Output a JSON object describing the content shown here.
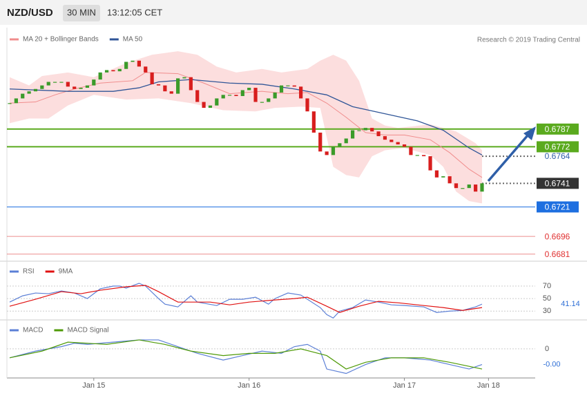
{
  "chart_data": [
    {
      "type": "candlestick",
      "title": "NZD/USD",
      "interval": "30 MIN",
      "time": "13:12:05 CET",
      "source": "Research © 2019 Trading Central",
      "up_color": "#3b9b2a",
      "down_color": "#d81e1e",
      "close": [
        0.6809,
        0.6813,
        0.6817,
        0.6819,
        0.6821,
        0.6824,
        0.6827,
        0.6827,
        0.6827,
        0.6823,
        0.6821,
        0.6822,
        0.6824,
        0.6829,
        0.6835,
        0.6837,
        0.6836,
        0.6838,
        0.6844,
        0.6845,
        0.684,
        0.6835,
        0.6825,
        0.6824,
        0.6819,
        0.6817,
        0.683,
        0.6831,
        0.682,
        0.681,
        0.6805,
        0.6807,
        0.6813,
        0.6816,
        0.6816,
        0.6815,
        0.682,
        0.6822,
        0.681,
        0.681,
        0.6813,
        0.6818,
        0.6824,
        0.6824,
        0.6823,
        0.6813,
        0.6802,
        0.6784,
        0.6768,
        0.6765,
        0.6772,
        0.6775,
        0.6779,
        0.6786,
        0.6786,
        0.6788,
        0.6785,
        0.6781,
        0.6778,
        0.6776,
        0.6774,
        0.6772,
        0.6765,
        0.6765,
        0.6764,
        0.6752,
        0.6746,
        0.6747,
        0.6741,
        0.6737,
        0.6737,
        0.674,
        0.6734,
        0.6741
      ],
      "series": [
        {
          "name": "MA 20 + Bollinger Bands",
          "color": "#f08c8c",
          "x": [
            0,
            4,
            7,
            10,
            14,
            19,
            21,
            26,
            30,
            34,
            39,
            43,
            46,
            49,
            52,
            55,
            58,
            61,
            65,
            68,
            71,
            73
          ],
          "values": [
            0.6809,
            0.681,
            0.6816,
            0.6821,
            0.6826,
            0.6828,
            0.6835,
            0.6834,
            0.6826,
            0.6817,
            0.6819,
            0.6817,
            0.6818,
            0.6809,
            0.6797,
            0.6784,
            0.6782,
            0.6782,
            0.6778,
            0.6767,
            0.6753,
            0.6746
          ]
        },
        {
          "name": "MA 50",
          "color": "#2f5597",
          "x": [
            0,
            9,
            16,
            20,
            23,
            28,
            34,
            39,
            44,
            49,
            53,
            58,
            63,
            67,
            71,
            73
          ],
          "values": [
            0.6821,
            0.6819,
            0.6819,
            0.6822,
            0.6827,
            0.6829,
            0.6826,
            0.6825,
            0.6821,
            0.6816,
            0.6806,
            0.68,
            0.6794,
            0.6786,
            0.6771,
            0.6765
          ]
        }
      ],
      "bands": {
        "color": "#fbd3d3",
        "upper": {
          "x": [
            0,
            3,
            5,
            9,
            13,
            18,
            22,
            26,
            29,
            32,
            35,
            39,
            42,
            46,
            48,
            50,
            52,
            54,
            56,
            58,
            60,
            65,
            69,
            72,
            73
          ],
          "values": [
            0.6831,
            0.6824,
            0.6832,
            0.6835,
            0.6831,
            0.6843,
            0.685,
            0.6853,
            0.685,
            0.684,
            0.6835,
            0.6838,
            0.6835,
            0.6838,
            0.6845,
            0.685,
            0.6845,
            0.6828,
            0.6796,
            0.679,
            0.6788,
            0.6791,
            0.6785,
            0.6775,
            0.6769
          ]
        },
        "lower": {
          "x": [
            0,
            3,
            6,
            9,
            13,
            18,
            23,
            28,
            33,
            38,
            41,
            45,
            48,
            50,
            52,
            54,
            56,
            58,
            61,
            65,
            67,
            69,
            71,
            73
          ],
          "values": [
            0.6792,
            0.6796,
            0.6796,
            0.6807,
            0.6816,
            0.6812,
            0.6813,
            0.6809,
            0.6803,
            0.6802,
            0.6805,
            0.6806,
            0.6805,
            0.6755,
            0.6748,
            0.6746,
            0.6764,
            0.6769,
            0.6771,
            0.6765,
            0.6755,
            0.6734,
            0.6726,
            0.6724
          ]
        }
      },
      "levels": [
        {
          "value": 0.6787,
          "color": "#5aaa1e",
          "style": "box"
        },
        {
          "value": 0.6772,
          "color": "#5aaa1e",
          "style": "box"
        },
        {
          "value": 0.6764,
          "color": "#2f5fa8",
          "style": "dotted-text"
        },
        {
          "value": 0.6741,
          "color": "#333333",
          "style": "dotted-box"
        },
        {
          "value": 0.6721,
          "color": "#1e6fe0",
          "style": "box"
        },
        {
          "value": 0.6696,
          "color": "#e03030",
          "style": "text"
        },
        {
          "value": 0.6681,
          "color": "#e03030",
          "style": "text"
        }
      ],
      "ylim": [
        0.6675,
        0.6873
      ]
    },
    {
      "type": "line",
      "series": [
        {
          "name": "RSI",
          "color": "#5b7fd6",
          "x": [
            0,
            2,
            4,
            6,
            8,
            10,
            12,
            14,
            16,
            17,
            18,
            20,
            21,
            23,
            24,
            26,
            28,
            29,
            32,
            34,
            36,
            38,
            40,
            41,
            43,
            45,
            48,
            49,
            50,
            51,
            53,
            55,
            57,
            59,
            61,
            64,
            66,
            68,
            70,
            72,
            73
          ],
          "values": [
            44.4,
            54.4,
            58.9,
            57.8,
            62.2,
            58.9,
            50,
            65.6,
            70,
            70,
            66.7,
            74.4,
            70,
            50,
            41.1,
            36.7,
            54.4,
            44.4,
            38.9,
            48.9,
            48.9,
            52.2,
            41.1,
            50,
            58.9,
            55.6,
            35.6,
            24.4,
            18.9,
            30,
            35.6,
            47.8,
            44.4,
            40,
            38.9,
            36.7,
            27.8,
            30,
            31.1,
            36.7,
            41.14
          ]
        },
        {
          "name": "9MA",
          "color": "#e01010",
          "x": [
            0,
            4,
            8,
            11,
            14,
            18,
            21,
            23,
            26,
            31,
            34,
            37,
            41,
            44,
            46,
            49,
            51,
            54,
            57,
            60,
            64,
            67,
            70,
            73
          ],
          "values": [
            37.8,
            48.9,
            61.1,
            57.8,
            63.3,
            68.9,
            71.1,
            61.1,
            44.4,
            44.4,
            40,
            44.4,
            47.8,
            50,
            52.2,
            37.8,
            27.8,
            37.8,
            45.6,
            43.3,
            38.9,
            35.6,
            31.1,
            35.6
          ]
        }
      ],
      "ylim": [
        17,
        102
      ],
      "yticks": [
        30,
        50,
        70
      ]
    },
    {
      "type": "line",
      "series": [
        {
          "name": "MACD",
          "color": "#5b7fd6",
          "last_label": "-0.00",
          "x": [
            0,
            4,
            8,
            10,
            12,
            16,
            20,
            23,
            26,
            29,
            33,
            36,
            39,
            42,
            44,
            46,
            48,
            49,
            52,
            55,
            58,
            61,
            65,
            68,
            71,
            73
          ],
          "values": [
            -0.0004,
            -0.0001,
            0.0001,
            0.00025,
            0.0002,
            0.0003,
            0.0004,
            0.0004,
            0.0001,
            -0.0002,
            -0.0005,
            -0.0003,
            -0.0001,
            -0.0002,
            0.0001,
            0.0002,
            -0.0001,
            -0.0009,
            -0.0011,
            -0.0007,
            -0.0004,
            -0.0004,
            -0.0005,
            -0.0007,
            -0.0009,
            -0.0007
          ]
        },
        {
          "name": "MACD Signal",
          "color": "#4e9a06",
          "x": [
            0,
            5,
            9,
            15,
            20,
            24,
            28,
            33,
            37,
            41,
            45,
            49,
            52,
            55,
            59,
            64,
            68,
            73
          ],
          "values": [
            -0.0004,
            -0.0001,
            0.0003,
            0.0002,
            0.0004,
            0.0002,
            -0.0001,
            -0.0003,
            -0.0002,
            -0.0002,
            0,
            -0.0003,
            -0.0009,
            -0.0006,
            -0.0004,
            -0.0004,
            -0.0006,
            -0.0009
          ]
        }
      ],
      "ylim": [
        -0.0013,
        0.0012
      ],
      "yticks": [
        0
      ],
      "xticks": [
        {
          "value": 13,
          "label": "Jan 15"
        },
        {
          "value": 37,
          "label": "Jan 16"
        },
        {
          "value": 61,
          "label": "Jan 17"
        },
        {
          "value": 74,
          "label": "Jan 18"
        }
      ]
    }
  ]
}
